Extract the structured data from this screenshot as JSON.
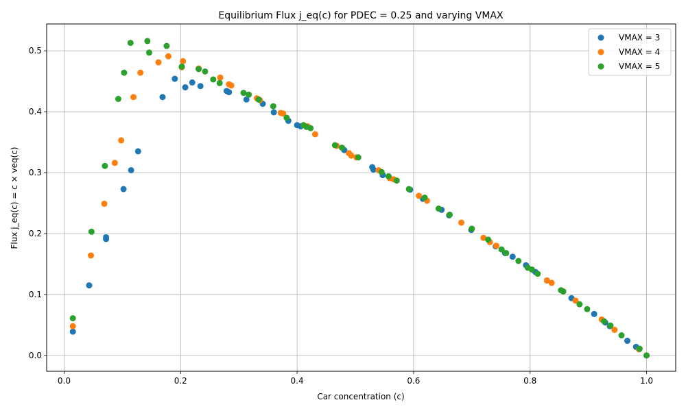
{
  "chart_data": {
    "type": "scatter",
    "title": "Equilibrium Flux j_eq(c) for PDEC = 0.25 and varying VMAX",
    "xlabel": "Car concentration (c)",
    "ylabel": "Flux j_eq(c) = c × veq(c)",
    "xlim": [
      -0.03,
      1.05
    ],
    "ylim": [
      -0.026,
      0.544
    ],
    "xticks": [
      0.0,
      0.2,
      0.4,
      0.6,
      0.8,
      1.0
    ],
    "xtick_labels": [
      "0.0",
      "0.2",
      "0.4",
      "0.6",
      "0.8",
      "1.0"
    ],
    "yticks": [
      0.0,
      0.1,
      0.2,
      0.3,
      0.4,
      0.5
    ],
    "ytick_labels": [
      "0.0",
      "0.1",
      "0.2",
      "0.3",
      "0.4",
      "0.5"
    ],
    "grid": true,
    "legend_position": "top-right",
    "series": [
      {
        "name": "VMAX = 3",
        "color": "#1f77b4",
        "points": [
          [
            0.015,
            0.039
          ],
          [
            0.043,
            0.115
          ],
          [
            0.072,
            0.191
          ],
          [
            0.072,
            0.194
          ],
          [
            0.102,
            0.273
          ],
          [
            0.115,
            0.304
          ],
          [
            0.127,
            0.335
          ],
          [
            0.169,
            0.424
          ],
          [
            0.19,
            0.454
          ],
          [
            0.208,
            0.44
          ],
          [
            0.22,
            0.448
          ],
          [
            0.234,
            0.442
          ],
          [
            0.279,
            0.434
          ],
          [
            0.283,
            0.432
          ],
          [
            0.313,
            0.42
          ],
          [
            0.341,
            0.413
          ],
          [
            0.36,
            0.399
          ],
          [
            0.385,
            0.385
          ],
          [
            0.4,
            0.378
          ],
          [
            0.406,
            0.376
          ],
          [
            0.481,
            0.337
          ],
          [
            0.529,
            0.309
          ],
          [
            0.531,
            0.305
          ],
          [
            0.547,
            0.296
          ],
          [
            0.594,
            0.272
          ],
          [
            0.616,
            0.257
          ],
          [
            0.648,
            0.239
          ],
          [
            0.661,
            0.23
          ],
          [
            0.699,
            0.206
          ],
          [
            0.741,
            0.179
          ],
          [
            0.757,
            0.168
          ],
          [
            0.77,
            0.162
          ],
          [
            0.793,
            0.148
          ],
          [
            0.809,
            0.137
          ],
          [
            0.829,
            0.123
          ],
          [
            0.871,
            0.094
          ],
          [
            0.91,
            0.068
          ],
          [
            0.929,
            0.054
          ],
          [
            0.937,
            0.048
          ],
          [
            0.967,
            0.024
          ],
          [
            0.982,
            0.014
          ],
          [
            0.987,
            0.01
          ],
          [
            1.0,
            0.0
          ]
        ]
      },
      {
        "name": "VMAX = 4",
        "color": "#ff7f0e",
        "points": [
          [
            0.015,
            0.048
          ],
          [
            0.046,
            0.164
          ],
          [
            0.069,
            0.249
          ],
          [
            0.087,
            0.316
          ],
          [
            0.098,
            0.353
          ],
          [
            0.119,
            0.424
          ],
          [
            0.131,
            0.464
          ],
          [
            0.162,
            0.481
          ],
          [
            0.179,
            0.491
          ],
          [
            0.202,
            0.473
          ],
          [
            0.204,
            0.483
          ],
          [
            0.231,
            0.471
          ],
          [
            0.268,
            0.456
          ],
          [
            0.283,
            0.445
          ],
          [
            0.287,
            0.443
          ],
          [
            0.331,
            0.422
          ],
          [
            0.336,
            0.419
          ],
          [
            0.372,
            0.398
          ],
          [
            0.376,
            0.397
          ],
          [
            0.418,
            0.376
          ],
          [
            0.431,
            0.363
          ],
          [
            0.468,
            0.344
          ],
          [
            0.489,
            0.332
          ],
          [
            0.493,
            0.328
          ],
          [
            0.502,
            0.325
          ],
          [
            0.54,
            0.304
          ],
          [
            0.559,
            0.291
          ],
          [
            0.566,
            0.289
          ],
          [
            0.609,
            0.262
          ],
          [
            0.623,
            0.254
          ],
          [
            0.682,
            0.218
          ],
          [
            0.72,
            0.193
          ],
          [
            0.731,
            0.186
          ],
          [
            0.742,
            0.18
          ],
          [
            0.829,
            0.123
          ],
          [
            0.837,
            0.119
          ],
          [
            0.878,
            0.09
          ],
          [
            0.923,
            0.059
          ],
          [
            0.945,
            0.042
          ],
          [
            0.987,
            0.01
          ],
          [
            1.0,
            0.0
          ]
        ]
      },
      {
        "name": "VMAX = 5",
        "color": "#2ca02c",
        "points": [
          [
            0.015,
            0.061
          ],
          [
            0.047,
            0.203
          ],
          [
            0.07,
            0.311
          ],
          [
            0.093,
            0.421
          ],
          [
            0.103,
            0.464
          ],
          [
            0.114,
            0.513
          ],
          [
            0.143,
            0.516
          ],
          [
            0.146,
            0.497
          ],
          [
            0.176,
            0.508
          ],
          [
            0.202,
            0.474
          ],
          [
            0.231,
            0.47
          ],
          [
            0.242,
            0.466
          ],
          [
            0.256,
            0.453
          ],
          [
            0.267,
            0.447
          ],
          [
            0.308,
            0.431
          ],
          [
            0.317,
            0.428
          ],
          [
            0.334,
            0.42
          ],
          [
            0.359,
            0.409
          ],
          [
            0.382,
            0.39
          ],
          [
            0.411,
            0.378
          ],
          [
            0.416,
            0.375
          ],
          [
            0.423,
            0.373
          ],
          [
            0.465,
            0.345
          ],
          [
            0.477,
            0.341
          ],
          [
            0.505,
            0.325
          ],
          [
            0.545,
            0.301
          ],
          [
            0.557,
            0.294
          ],
          [
            0.571,
            0.287
          ],
          [
            0.592,
            0.273
          ],
          [
            0.619,
            0.259
          ],
          [
            0.643,
            0.241
          ],
          [
            0.662,
            0.231
          ],
          [
            0.7,
            0.208
          ],
          [
            0.728,
            0.19
          ],
          [
            0.751,
            0.174
          ],
          [
            0.759,
            0.168
          ],
          [
            0.78,
            0.155
          ],
          [
            0.796,
            0.144
          ],
          [
            0.803,
            0.141
          ],
          [
            0.813,
            0.134
          ],
          [
            0.853,
            0.107
          ],
          [
            0.857,
            0.105
          ],
          [
            0.885,
            0.084
          ],
          [
            0.898,
            0.076
          ],
          [
            0.927,
            0.056
          ],
          [
            0.938,
            0.049
          ],
          [
            0.957,
            0.033
          ],
          [
            0.988,
            0.011
          ],
          [
            1.0,
            0.0
          ]
        ]
      }
    ]
  }
}
